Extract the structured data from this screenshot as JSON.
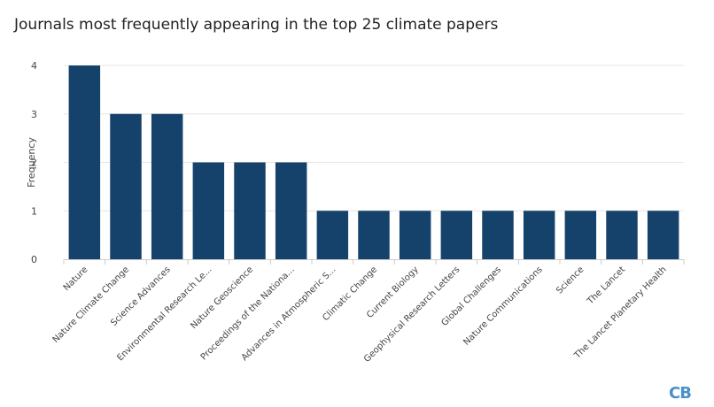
{
  "chart_data": {
    "type": "bar",
    "title": "Journals most frequently appearing in the top 25 climate papers",
    "ylabel": "Frequency",
    "xlabel": "",
    "ylim": [
      0,
      4
    ],
    "yticks": [
      0,
      1,
      2,
      3,
      4
    ],
    "grid": true,
    "categories": [
      "Nature",
      "Nature Climate Change",
      "Science Advances",
      "Environmental Research Le...",
      "Nature Geoscience",
      "Proceedings of the Nationa...",
      "Advances in Atmospheric S...",
      "Climatic Change",
      "Current Biology",
      "Geophysical Research Letters",
      "Global Challenges",
      "Nature Communications",
      "Science",
      "The Lancet",
      "The Lancet Planetary Health"
    ],
    "values": [
      4,
      3,
      3,
      2,
      2,
      2,
      1,
      1,
      1,
      1,
      1,
      1,
      1,
      1,
      1
    ],
    "bar_color": "#15426b",
    "grid_color": "#e6e6e6"
  },
  "logo": {
    "text": "CB"
  }
}
